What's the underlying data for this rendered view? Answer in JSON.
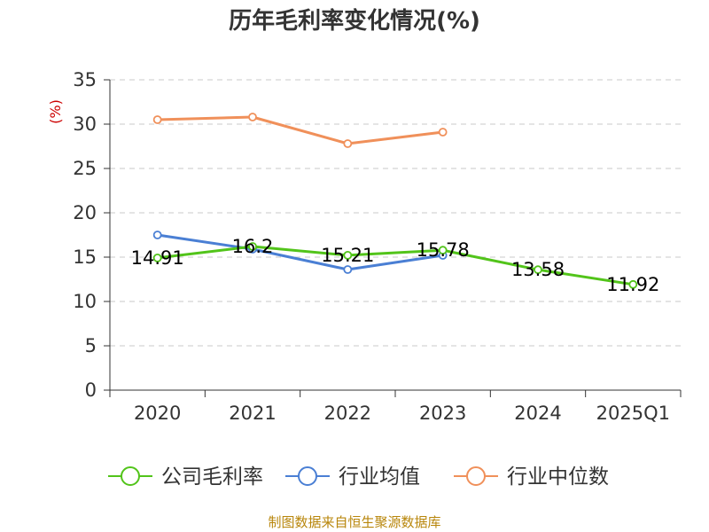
{
  "chart_data": {
    "type": "line",
    "title": "历年毛利率变化情况(%)",
    "ylabel": "(%)",
    "categories": [
      "2020",
      "2021",
      "2022",
      "2023",
      "2024",
      "2025Q1"
    ],
    "yticks": [
      "0",
      "5",
      "10",
      "15",
      "20",
      "25",
      "30",
      "35"
    ],
    "ylim": [
      0,
      35
    ],
    "grid": true,
    "legend_position": "bottom",
    "series": [
      {
        "name": "公司毛利率",
        "color": "#52c41a",
        "values": [
          14.91,
          16.2,
          15.21,
          15.78,
          13.58,
          11.92
        ],
        "labels": [
          "14.91",
          "16.2",
          "15.21",
          "15.78",
          "13.58",
          "11.92"
        ]
      },
      {
        "name": "行业均值",
        "color": "#4a7fd4",
        "values": [
          17.5,
          15.9,
          13.6,
          15.2,
          null,
          null
        ]
      },
      {
        "name": "行业中位数",
        "color": "#f0905a",
        "values": [
          30.5,
          30.8,
          27.8,
          29.1,
          null,
          null
        ]
      }
    ],
    "source": "制图数据来自恒生聚源数据库"
  }
}
